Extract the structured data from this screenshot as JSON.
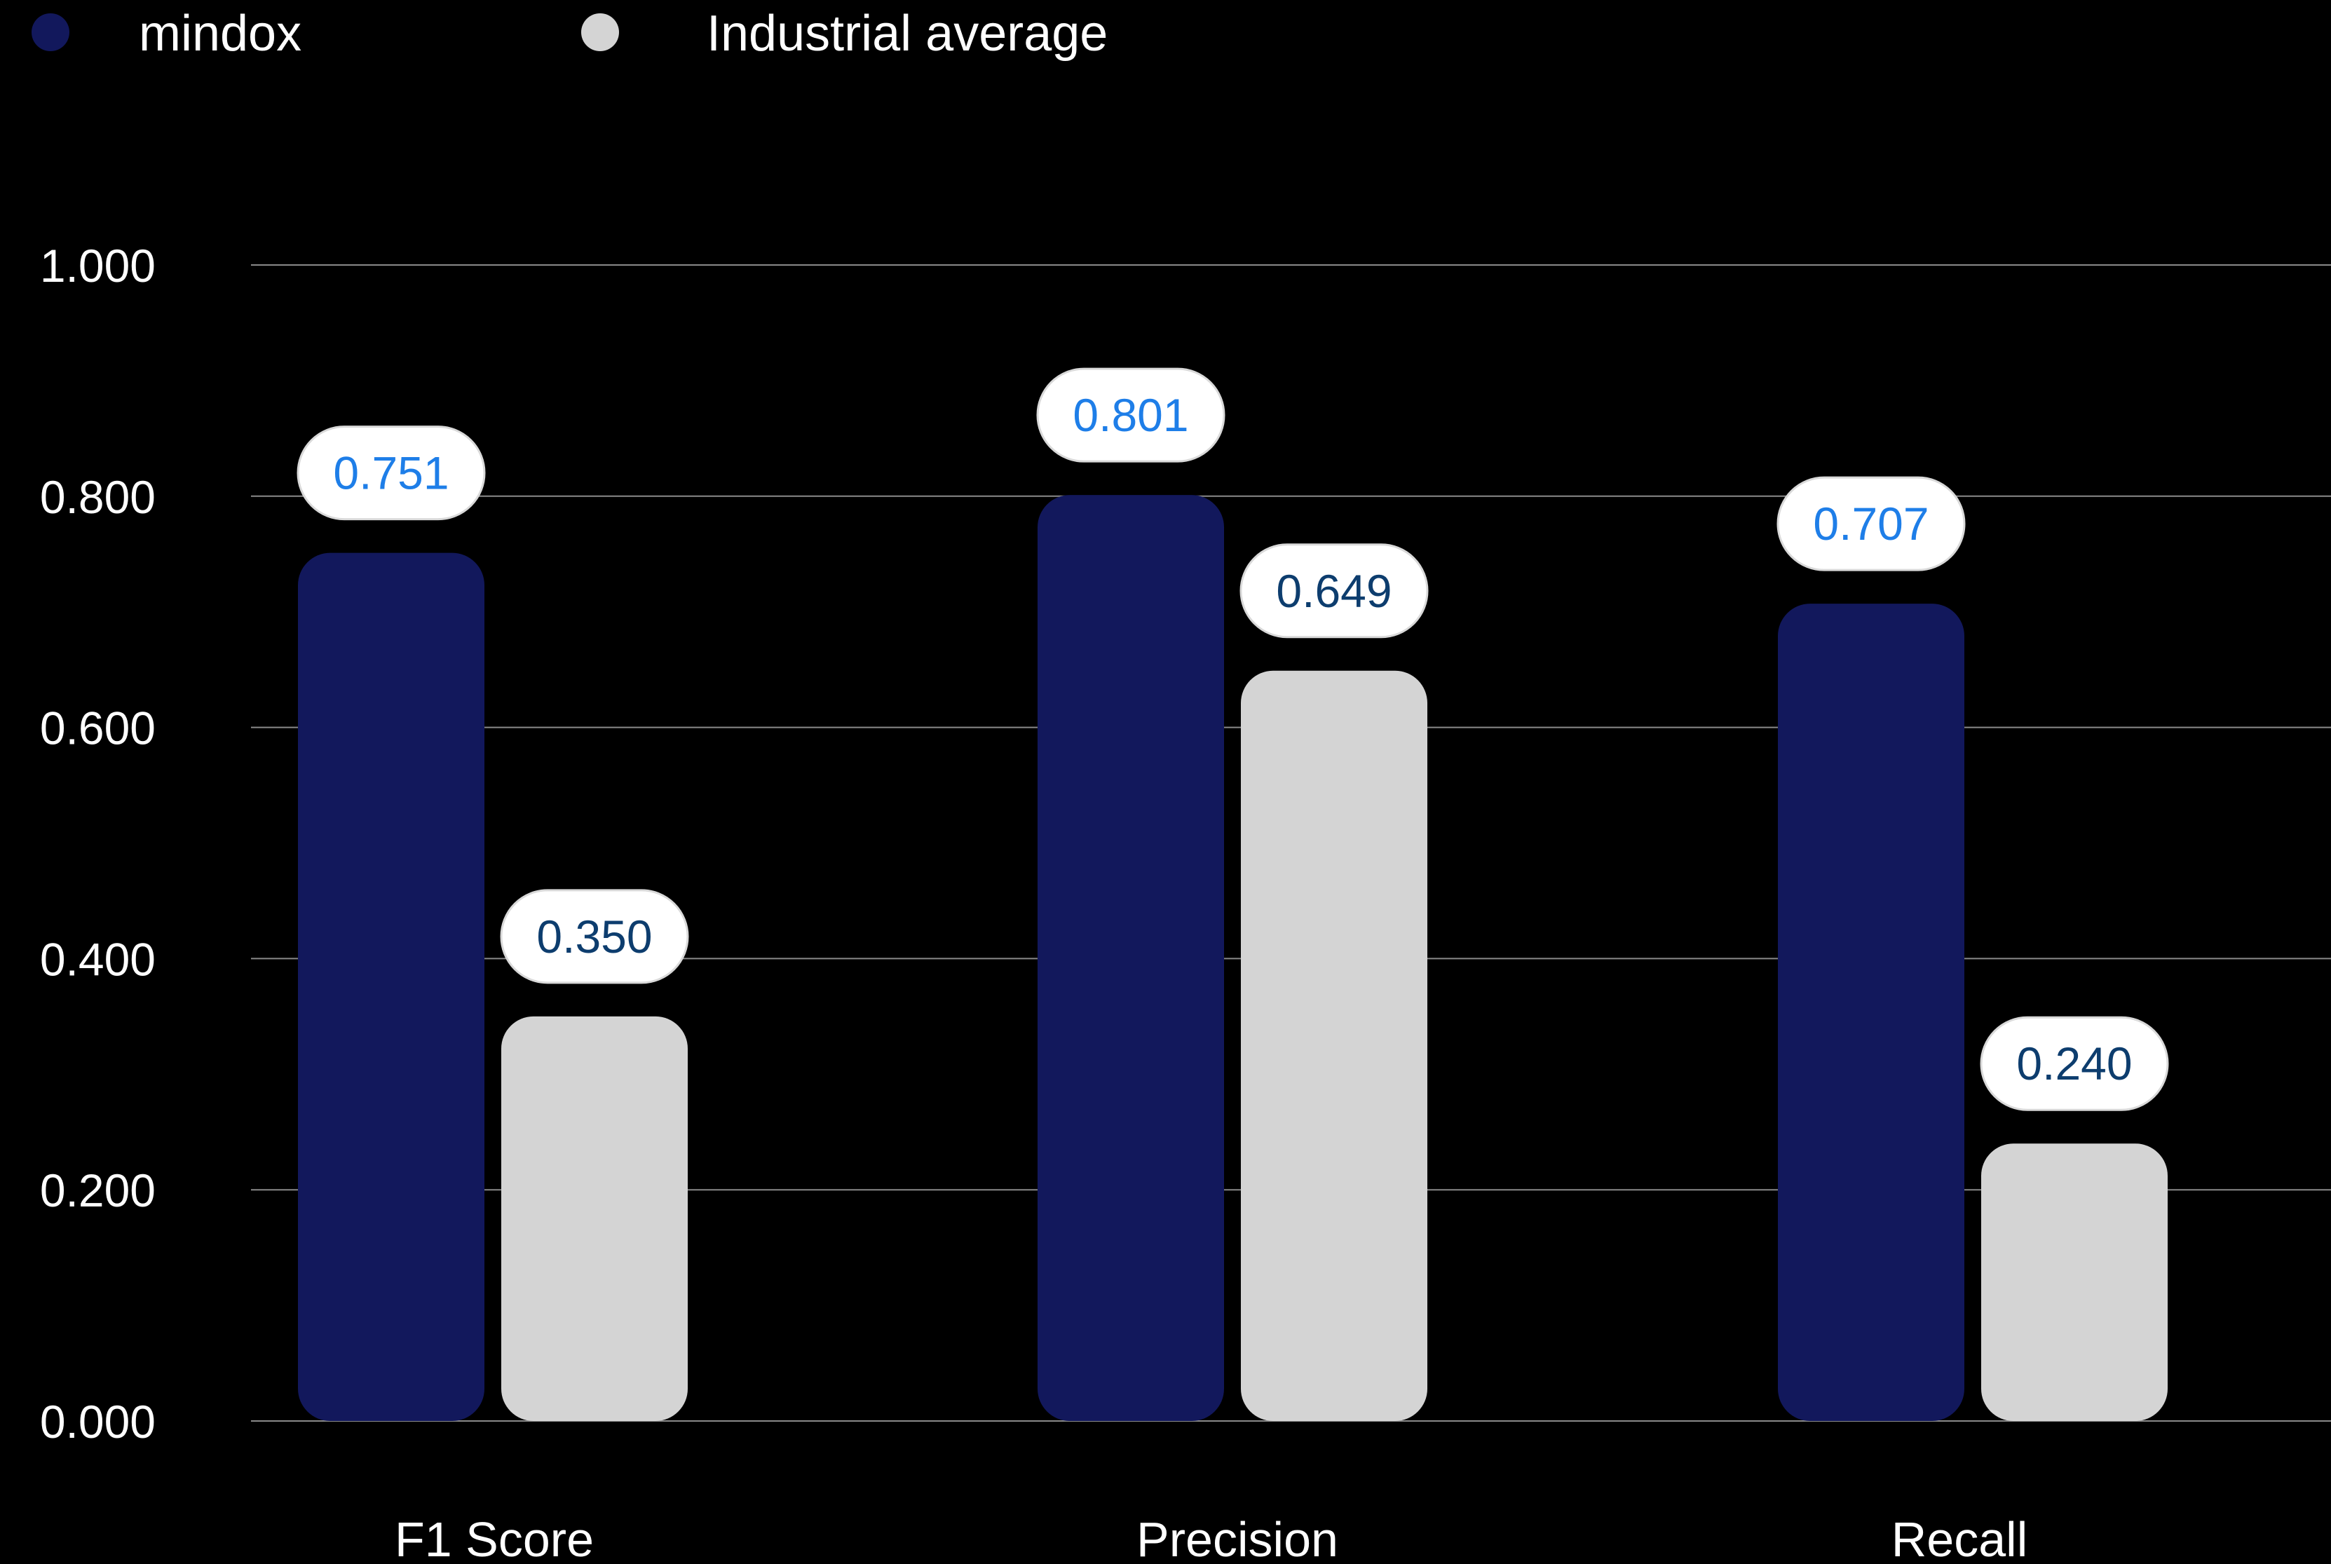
{
  "chart_data": {
    "type": "bar",
    "categories": [
      "F1 Score",
      "Precision",
      "Recall"
    ],
    "series": [
      {
        "name": "mindox",
        "color": "#12185c",
        "label_color": "#1e7ee8",
        "values": [
          0.751,
          0.801,
          0.707
        ],
        "labels": [
          "0.751",
          "0.801",
          "0.707"
        ]
      },
      {
        "name": "Industrial average",
        "color": "#d4d4d4",
        "label_color": "#0d3d6e",
        "values": [
          0.35,
          0.649,
          0.24
        ],
        "labels": [
          "0.350",
          "0.649",
          "0.240"
        ]
      }
    ],
    "yticks": [
      0,
      0.2,
      0.4,
      0.6,
      0.8,
      1.0
    ],
    "ytick_labels": [
      "0.000",
      "0.200",
      "0.400",
      "0.600",
      "0.800",
      "1.000"
    ],
    "ylim": [
      0,
      1.0
    ],
    "grid": true,
    "legend_position": "top-left",
    "background": "#000000",
    "title": "",
    "xlabel": "",
    "ylabel": ""
  }
}
